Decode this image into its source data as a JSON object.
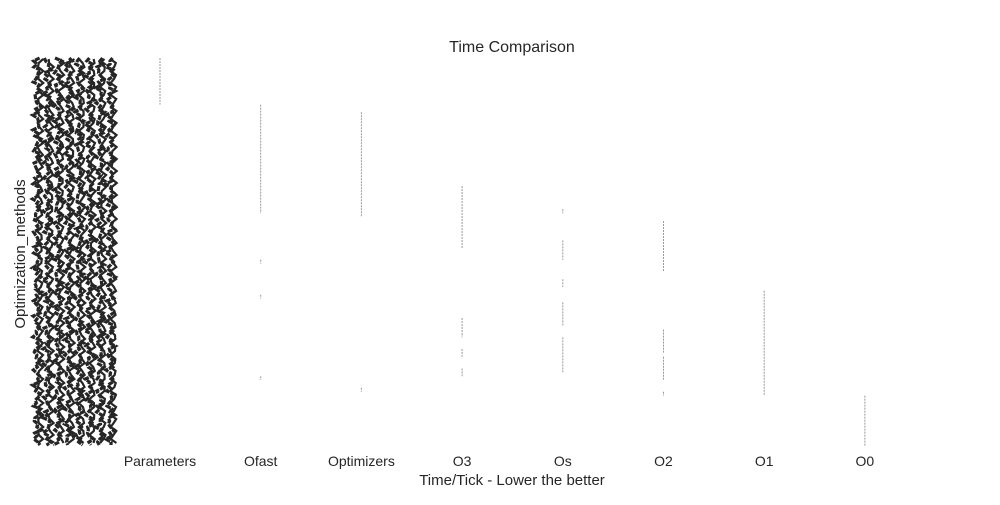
{
  "chart_data": {
    "type": "scatter",
    "title": "Time Comparison",
    "xlabel": "Time/Tick - Lower the better",
    "ylabel": "Optimization_methods",
    "categories": [
      "Parameters",
      "Ofast",
      "Optimizers",
      "O3",
      "Os",
      "O2",
      "O1",
      "O0"
    ],
    "ylim": [
      0,
      100
    ],
    "grid": false,
    "legend": "none",
    "mark_color": "#9a9a9a",
    "text_color": "#262626",
    "series": [
      {
        "category": "Parameters",
        "ranges": [
          [
            88,
            100
          ]
        ]
      },
      {
        "category": "Ofast",
        "ranges": [
          [
            60,
            88
          ],
          [
            47,
            48
          ],
          [
            38,
            39
          ],
          [
            17,
            18
          ]
        ]
      },
      {
        "category": "Optimizers",
        "ranges": [
          [
            59,
            86
          ],
          [
            14,
            15
          ]
        ]
      },
      {
        "category": "O3",
        "ranges": [
          [
            51,
            67
          ],
          [
            29,
            33
          ],
          [
            28,
            29
          ],
          [
            23,
            25
          ],
          [
            18,
            20
          ]
        ]
      },
      {
        "category": "Os",
        "ranges": [
          [
            60,
            61
          ],
          [
            48,
            53
          ],
          [
            41,
            43
          ],
          [
            31,
            37
          ],
          [
            19,
            28
          ]
        ]
      },
      {
        "category": "O2",
        "ranges": [
          [
            45,
            58
          ],
          [
            24,
            30
          ],
          [
            17,
            23
          ],
          [
            13,
            14
          ]
        ]
      },
      {
        "category": "O1",
        "ranges": [
          [
            13,
            40
          ]
        ]
      },
      {
        "category": "O0",
        "ranges": [
          [
            0,
            13
          ]
        ]
      }
    ]
  }
}
